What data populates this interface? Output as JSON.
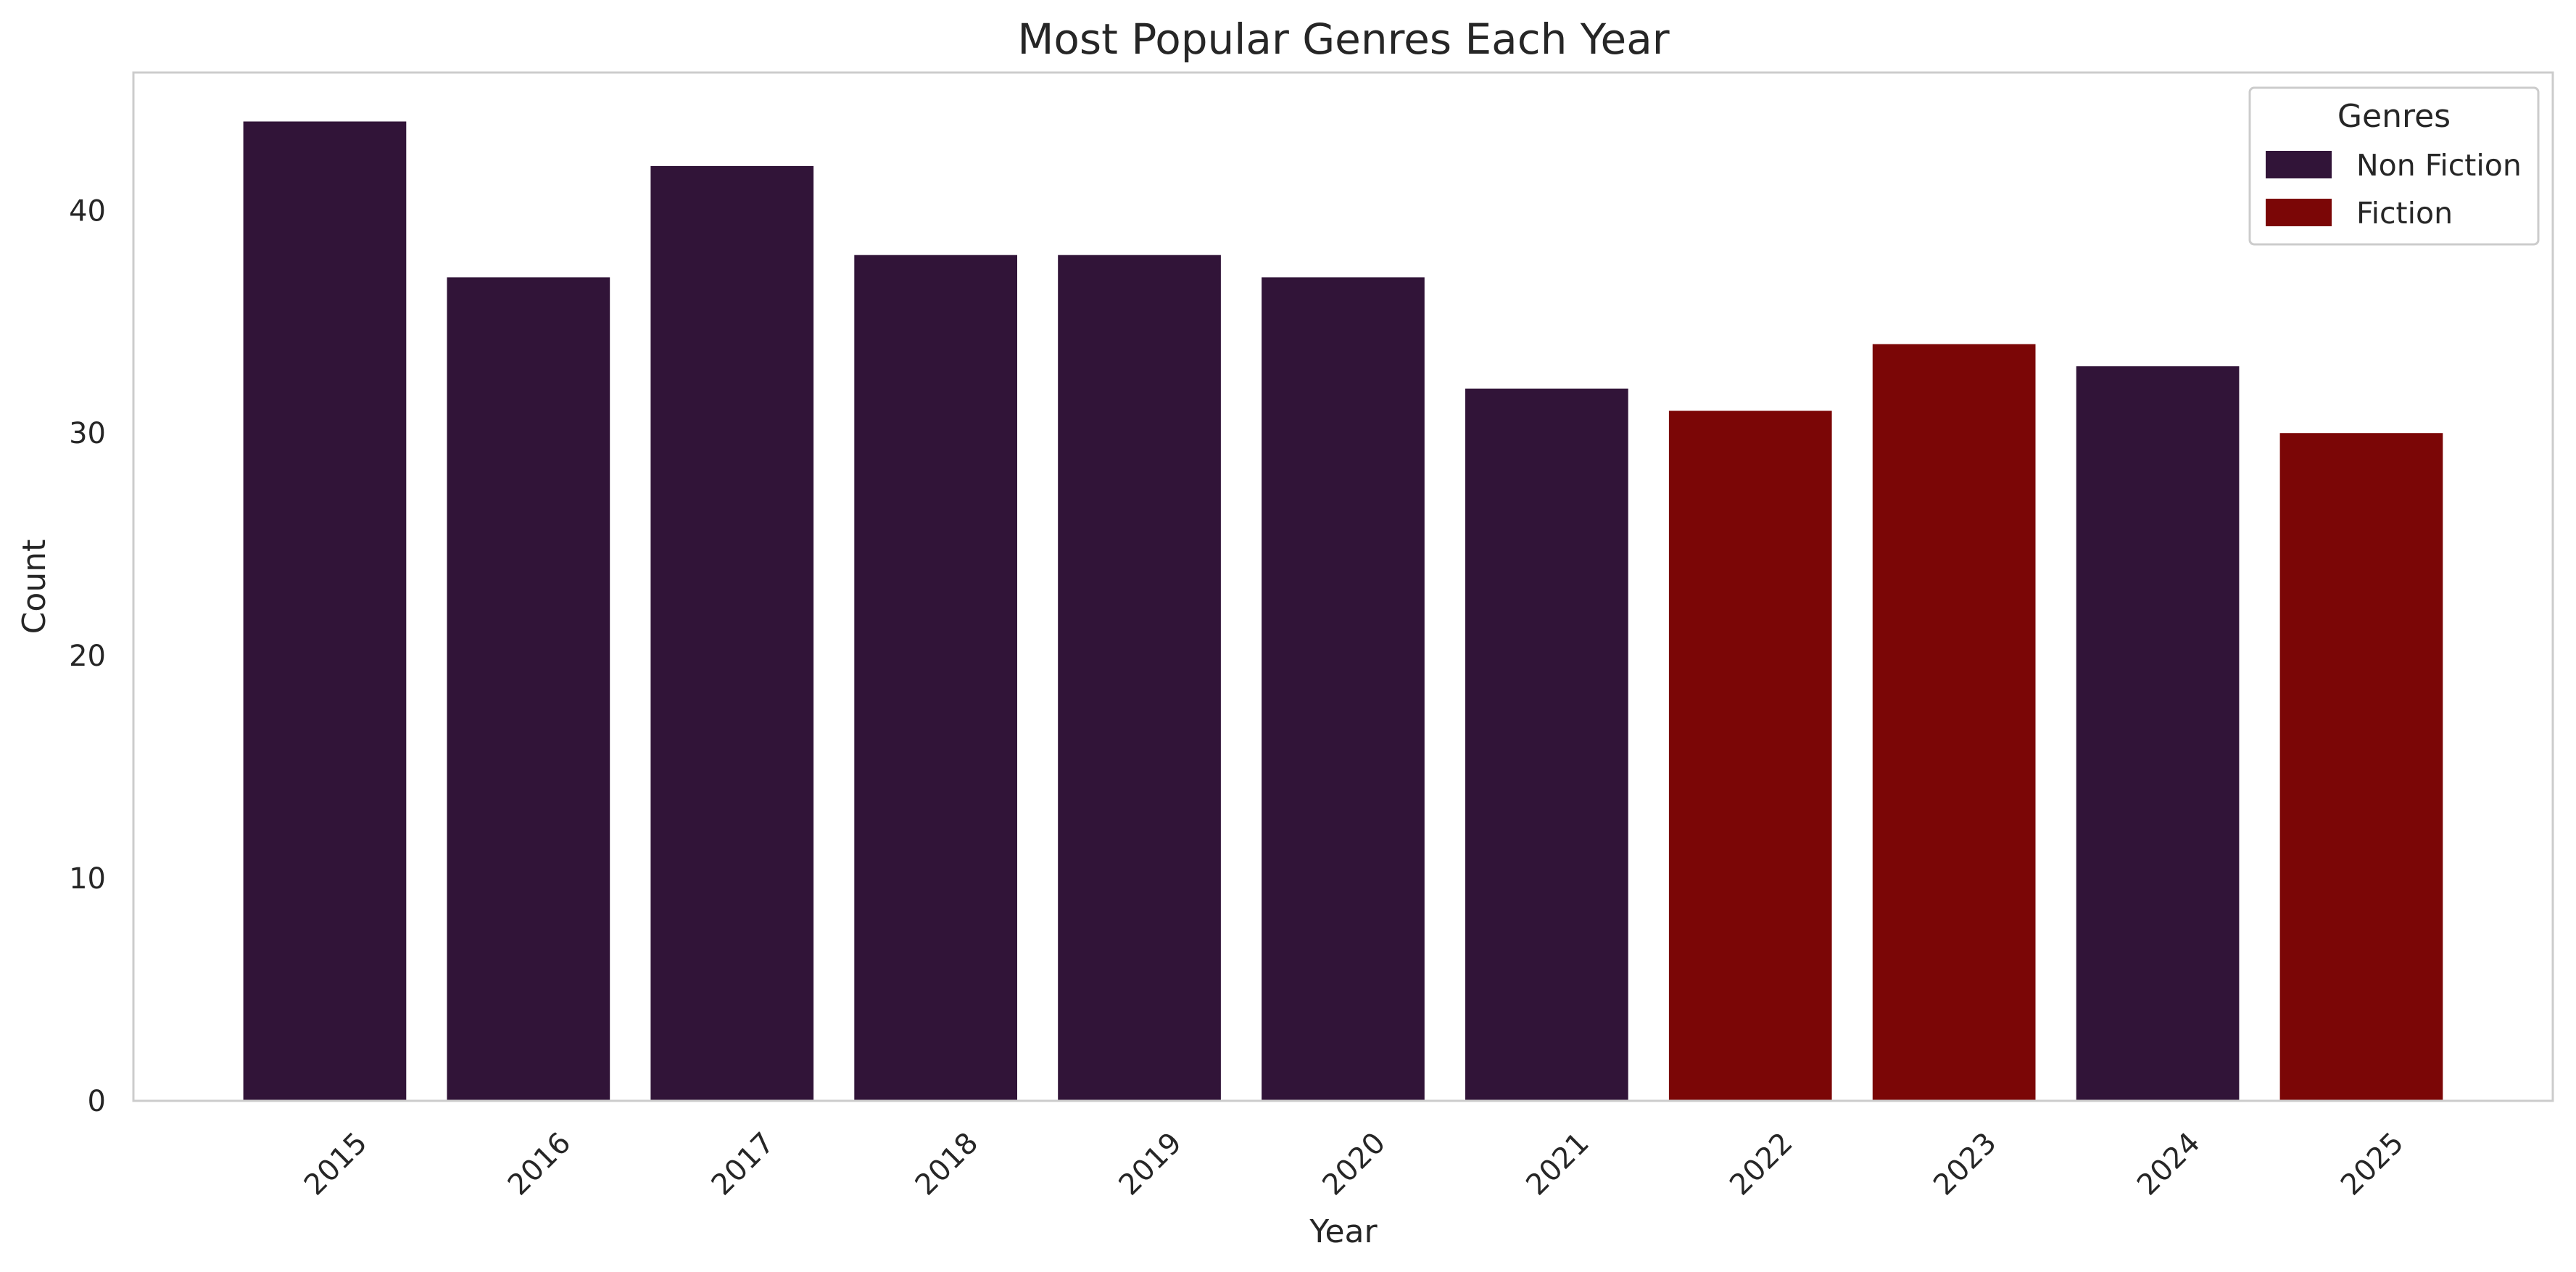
{
  "chart_data": {
    "type": "bar",
    "title": "Most Popular Genres Each Year",
    "xlabel": "Year",
    "ylabel": "Count",
    "categories": [
      "2015",
      "2016",
      "2017",
      "2018",
      "2019",
      "2020",
      "2021",
      "2022",
      "2023",
      "2024",
      "2025"
    ],
    "values": [
      44,
      37,
      42,
      38,
      38,
      37,
      32,
      31,
      34,
      33,
      30
    ],
    "bar_genres": [
      "Non Fiction",
      "Non Fiction",
      "Non Fiction",
      "Non Fiction",
      "Non Fiction",
      "Non Fiction",
      "Non Fiction",
      "Fiction",
      "Fiction",
      "Non Fiction",
      "Fiction"
    ],
    "ylim": [
      0,
      46.2
    ],
    "yticks": [
      0,
      10,
      20,
      30,
      40
    ],
    "xtick_rotation_deg": 45,
    "grid": false,
    "legend": {
      "title": "Genres",
      "placement": "top-right",
      "entries": [
        {
          "label": "Non Fiction",
          "color": "#311438"
        },
        {
          "label": "Fiction",
          "color": "#7b0606"
        }
      ]
    },
    "colors": {
      "Non Fiction": "#311438",
      "Fiction": "#7b0606",
      "axes_frame": "#cccccc",
      "text": "#262626",
      "background": "#ffffff"
    }
  }
}
